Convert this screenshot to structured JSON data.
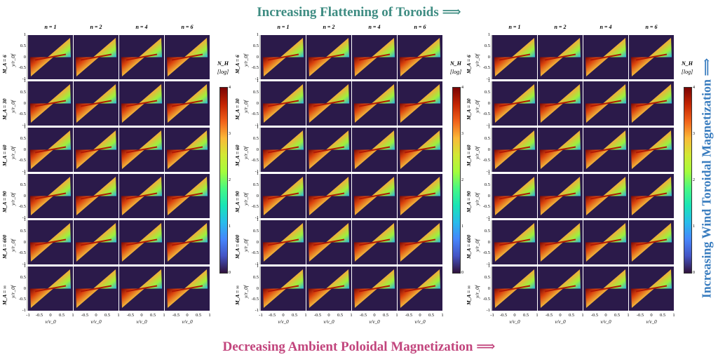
{
  "titles": {
    "top": "Increasing Flattening of Toroids ⟹",
    "bottom": "Decreasing Ambient Poloidal Magnetization ⟹",
    "right": "Increasing Wind Toroidal Magnetization ⟹"
  },
  "colors": {
    "top": "#3e8c82",
    "bottom": "#c2457d",
    "right": "#3a7dbf",
    "panel_bg": "#2b1a4a"
  },
  "chart_data": {
    "type": "heatmap",
    "column_labels": [
      "n = 1",
      "n = 2",
      "n = 4",
      "n = 6"
    ],
    "row_labels": [
      "M_A = 6",
      "M_A = 30",
      "M_A = 60",
      "M_A = 90",
      "M_A = 600",
      "M_A = ∞"
    ],
    "ylabel": "y/r_0f",
    "xlabel": "v/v_0",
    "x_ticks": [
      "-1",
      "-0.5",
      "0",
      "0.5",
      "1"
    ],
    "y_ticks": [
      "1",
      "0.5",
      "0",
      "-0.5",
      "-1"
    ],
    "xlim": [
      -1,
      1
    ],
    "ylim": [
      -1,
      1
    ],
    "colorbar": {
      "title": "N_H",
      "subtitle": "[log]",
      "ticks": [
        "4",
        "3",
        "2",
        "1",
        "0"
      ],
      "range": [
        0,
        4
      ],
      "colormap": "turbo"
    },
    "figures": 3
  }
}
